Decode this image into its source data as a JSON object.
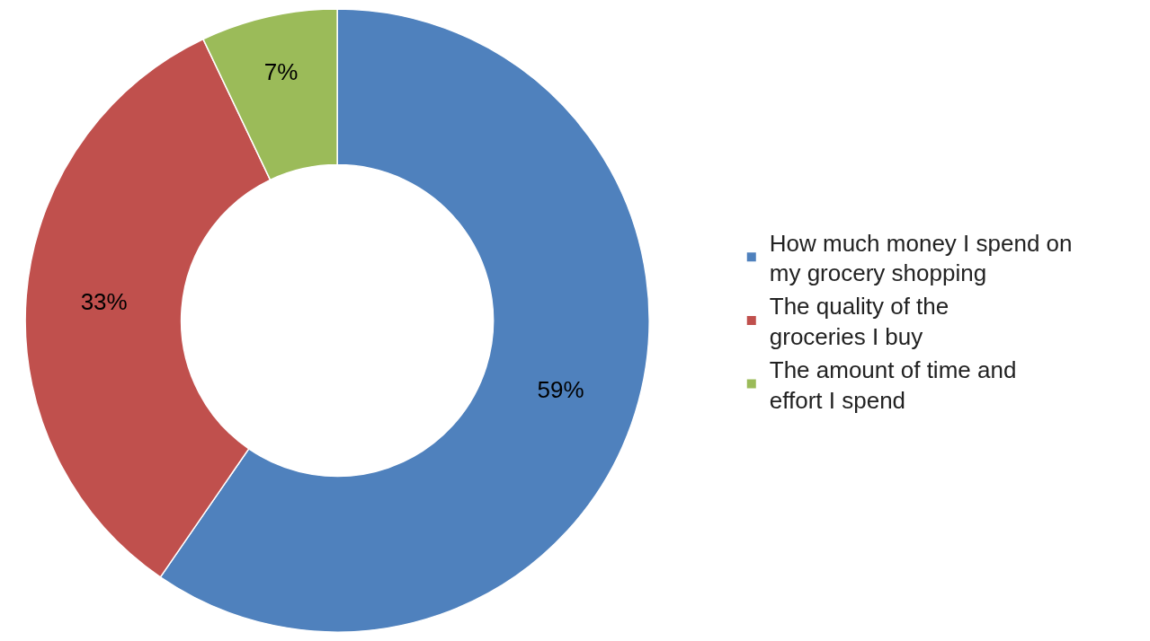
{
  "chart_data": {
    "type": "donut",
    "categories": [
      "How much money I spend on my grocery shopping",
      "The quality of the groceries I buy",
      "The amount of time and effort I spend"
    ],
    "values": [
      59,
      33,
      7
    ],
    "value_labels": [
      "59%",
      "33%",
      "7%"
    ],
    "colors": [
      "#4f81bd",
      "#c0504d",
      "#9bbb59"
    ],
    "legend": "right"
  }
}
